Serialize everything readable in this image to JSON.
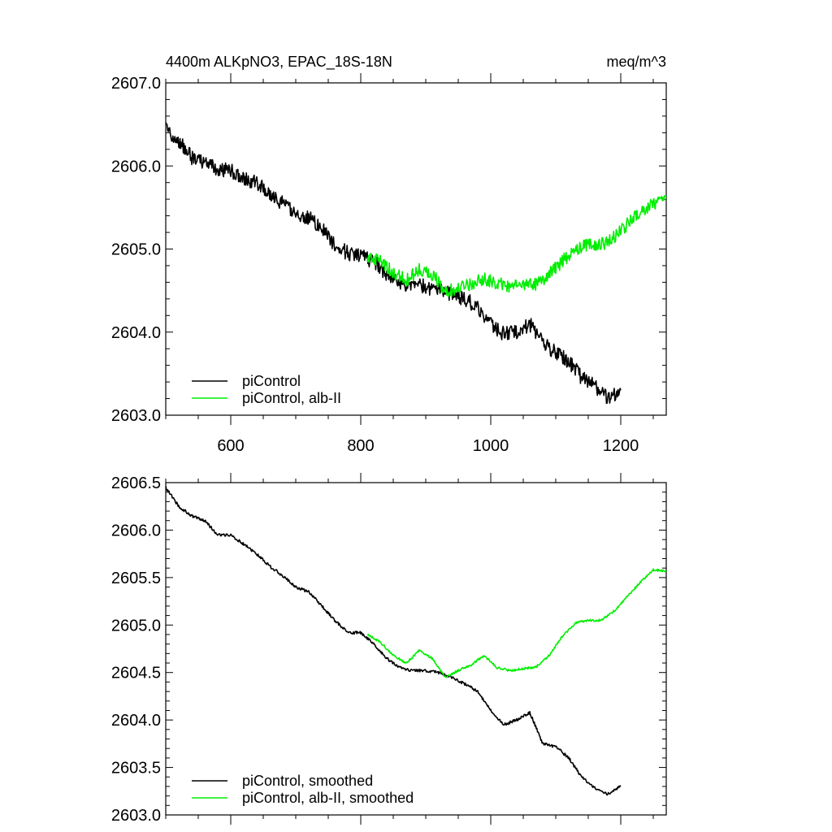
{
  "figure": {
    "title": "4400m ALKpNO3, EPAC_18S-18N",
    "units": "meq/m^3"
  },
  "colors": {
    "control": "#000000",
    "albII": "#00ee00",
    "axis": "#000000"
  },
  "chart_data": [
    {
      "type": "line",
      "xlim": [
        500,
        1270
      ],
      "ylim": [
        2603.0,
        2607.0
      ],
      "xticks": [
        600,
        800,
        1000,
        1200
      ],
      "xtick_labels": [
        "600",
        "800",
        "1000",
        "1200"
      ],
      "yticks": [
        2603.0,
        2604.0,
        2605.0,
        2606.0,
        2607.0
      ],
      "ytick_labels": [
        "2603.0",
        "2604.0",
        "2605.0",
        "2606.0",
        "2607.0"
      ],
      "legend_position": "bottom-left",
      "series": [
        {
          "name": "piControl",
          "color_key": "control",
          "noise": 0.09,
          "x": [
            500,
            520,
            540,
            560,
            580,
            600,
            620,
            640,
            660,
            680,
            700,
            720,
            740,
            760,
            780,
            800,
            820,
            840,
            860,
            880,
            900,
            920,
            940,
            960,
            980,
            1000,
            1020,
            1040,
            1060,
            1080,
            1100,
            1120,
            1140,
            1160,
            1180,
            1200
          ],
          "y": [
            2606.45,
            2606.3,
            2606.1,
            2606.05,
            2605.95,
            2605.95,
            2605.85,
            2605.8,
            2605.65,
            2605.55,
            2605.42,
            2605.38,
            2605.25,
            2605.05,
            2604.95,
            2604.92,
            2604.85,
            2604.7,
            2604.6,
            2604.55,
            2604.55,
            2604.5,
            2604.45,
            2604.4,
            2604.3,
            2604.1,
            2603.98,
            2604.0,
            2604.1,
            2603.88,
            2603.75,
            2603.65,
            2603.45,
            2603.35,
            2603.22,
            2603.3
          ]
        },
        {
          "name": "piControl, alb-II",
          "color_key": "albII",
          "noise": 0.08,
          "x": [
            810,
            830,
            850,
            870,
            890,
            910,
            930,
            950,
            970,
            990,
            1010,
            1030,
            1050,
            1070,
            1090,
            1110,
            1130,
            1150,
            1170,
            1190,
            1210,
            1230,
            1250,
            1270
          ],
          "y": [
            2604.9,
            2604.85,
            2604.72,
            2604.62,
            2604.75,
            2604.7,
            2604.5,
            2604.52,
            2604.58,
            2604.65,
            2604.58,
            2604.55,
            2604.55,
            2604.58,
            2604.7,
            2604.85,
            2605.0,
            2605.05,
            2605.05,
            2605.15,
            2605.3,
            2605.45,
            2605.55,
            2605.6
          ]
        }
      ]
    },
    {
      "type": "line",
      "xlim": [
        500,
        1270
      ],
      "ylim": [
        2603.0,
        2606.5
      ],
      "xticks": [
        600,
        800,
        1000,
        1200
      ],
      "xtick_labels": [
        "",
        "",
        "",
        ""
      ],
      "yticks": [
        2603.0,
        2603.5,
        2604.0,
        2604.5,
        2605.0,
        2605.5,
        2606.0,
        2606.5
      ],
      "ytick_labels": [
        "2603.0",
        "2603.5",
        "2604.0",
        "2604.5",
        "2605.0",
        "2605.5",
        "2606.0",
        "2606.5"
      ],
      "legend_position": "bottom-left",
      "series": [
        {
          "name": "piControl, smoothed",
          "color_key": "control",
          "noise": 0.015,
          "x": [
            500,
            520,
            540,
            560,
            580,
            600,
            620,
            640,
            660,
            680,
            700,
            720,
            740,
            760,
            780,
            800,
            820,
            840,
            860,
            880,
            900,
            920,
            940,
            960,
            980,
            1000,
            1020,
            1040,
            1060,
            1080,
            1100,
            1120,
            1140,
            1160,
            1180,
            1200
          ],
          "y": [
            2606.45,
            2606.25,
            2606.15,
            2606.1,
            2605.95,
            2605.95,
            2605.85,
            2605.75,
            2605.62,
            2605.52,
            2605.4,
            2605.35,
            2605.2,
            2605.05,
            2604.92,
            2604.92,
            2604.8,
            2604.65,
            2604.55,
            2604.52,
            2604.52,
            2604.5,
            2604.45,
            2604.38,
            2604.3,
            2604.1,
            2603.95,
            2604.0,
            2604.08,
            2603.75,
            2603.72,
            2603.6,
            2603.4,
            2603.28,
            2603.22,
            2603.3
          ]
        },
        {
          "name": "piControl, alb-II, smoothed",
          "color_key": "albII",
          "noise": 0.012,
          "x": [
            810,
            830,
            850,
            870,
            890,
            910,
            930,
            950,
            970,
            990,
            1010,
            1030,
            1050,
            1070,
            1090,
            1110,
            1130,
            1150,
            1170,
            1190,
            1210,
            1230,
            1250,
            1270
          ],
          "y": [
            2604.9,
            2604.82,
            2604.68,
            2604.6,
            2604.73,
            2604.65,
            2604.45,
            2604.52,
            2604.58,
            2604.68,
            2604.55,
            2604.52,
            2604.54,
            2604.56,
            2604.68,
            2604.88,
            2605.02,
            2605.05,
            2605.05,
            2605.15,
            2605.3,
            2605.45,
            2605.58,
            2605.57
          ]
        }
      ]
    }
  ]
}
